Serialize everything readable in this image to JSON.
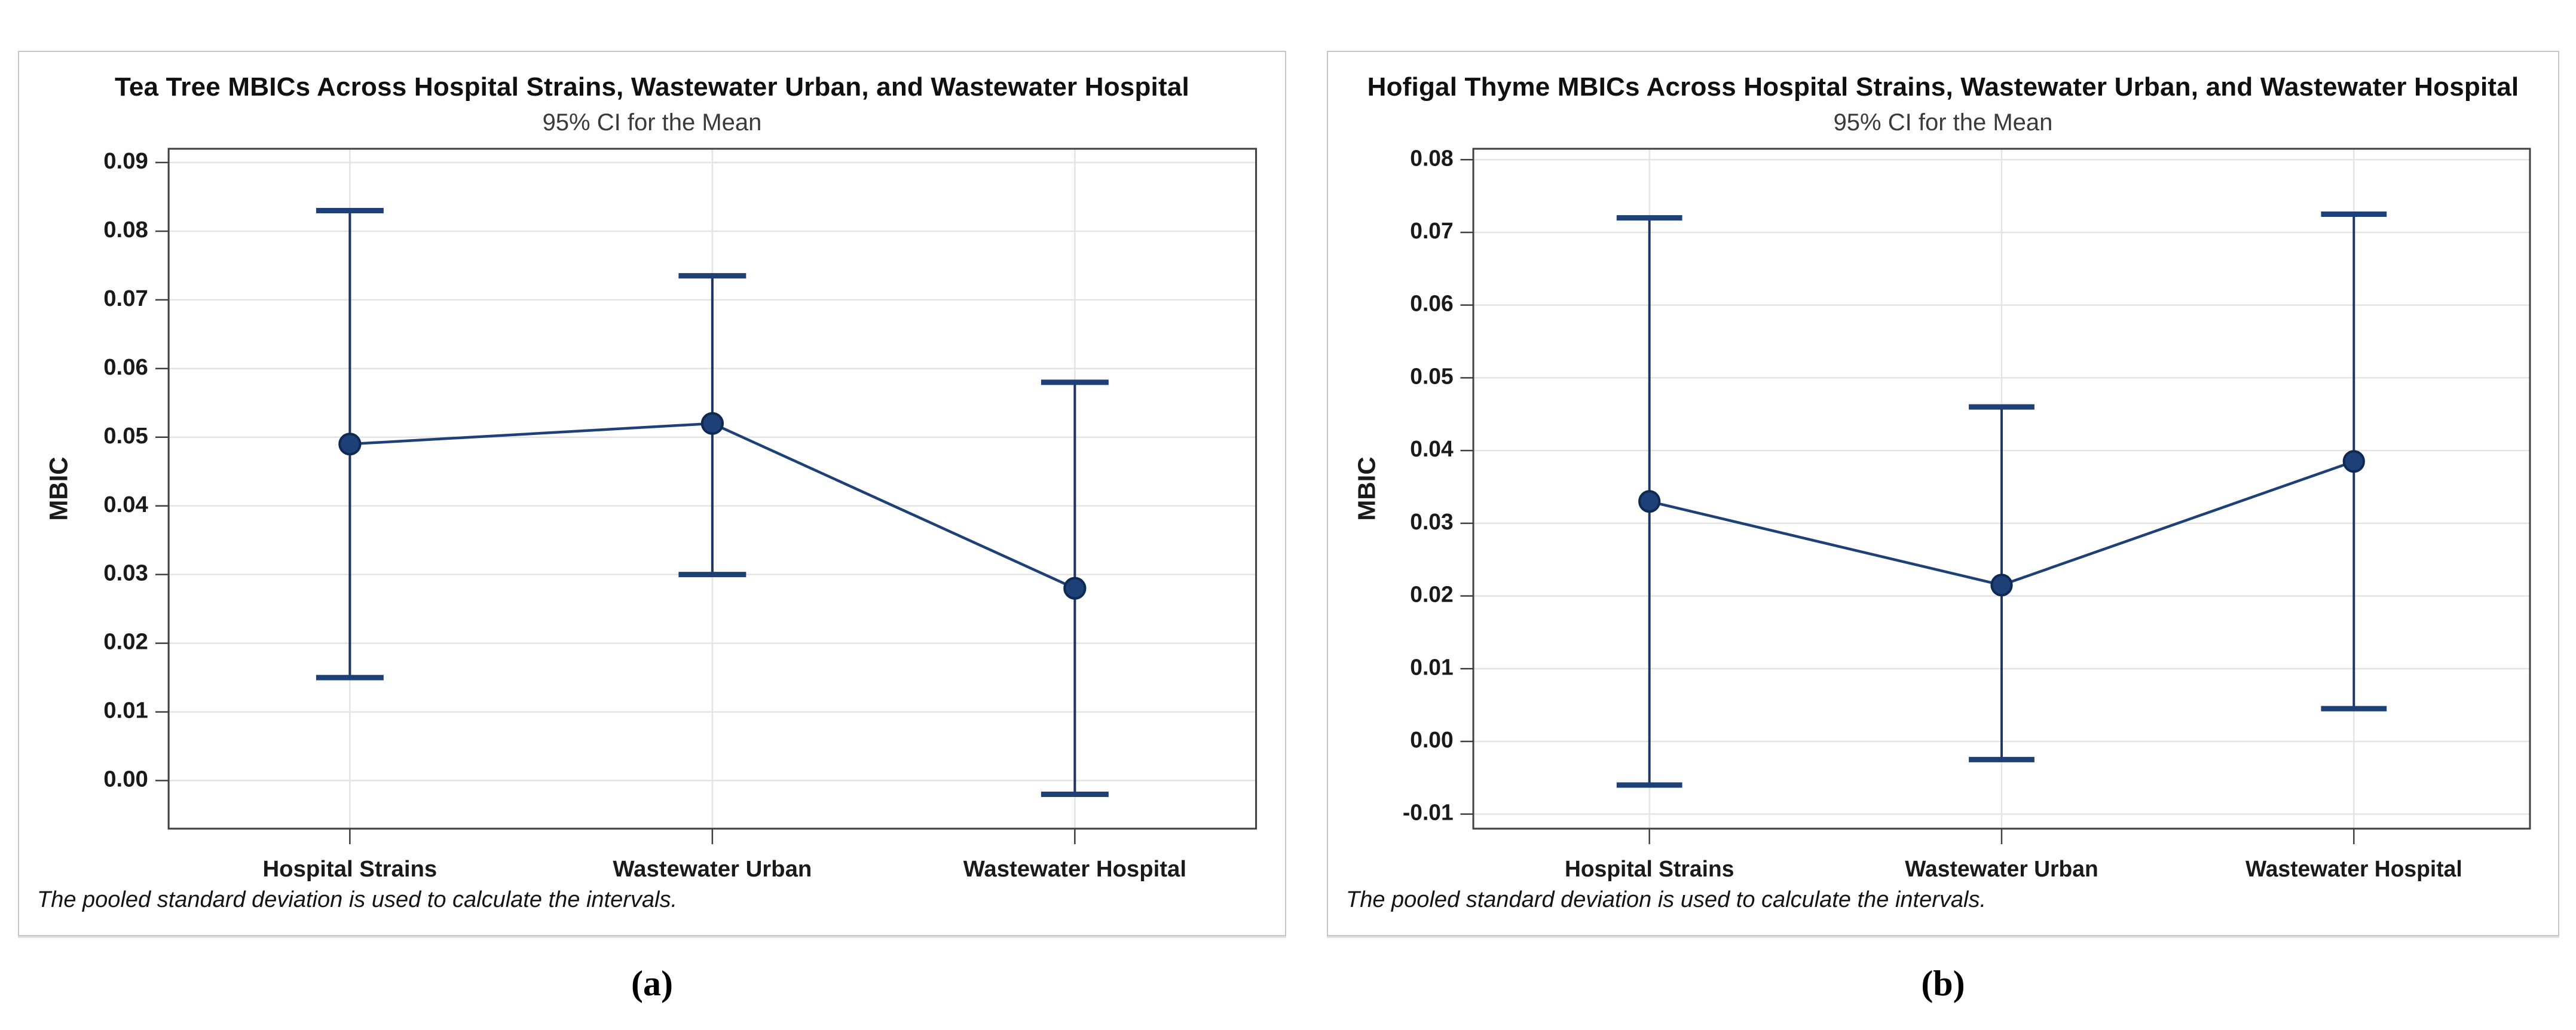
{
  "page": {
    "background": "#ffffff"
  },
  "colors": {
    "marker_fill": "#1d4076",
    "marker_edge": "#0f2a52",
    "mean_line": "#1d4076",
    "ci_cap": "#1d4076",
    "ci_line": "#1e3461",
    "gridline": "#e4e4e4",
    "plot_border": "#3f3f3f",
    "tick": "#3f3f3f",
    "text": "#1a1a1a"
  },
  "chart_data": [
    {
      "type": "line",
      "variant": "interval-plot-95ci-mean",
      "title": "Tea Tree MBICs Across Hospital Strains, Wastewater Urban, and Wastewater Hospital",
      "subtitle": "95% CI for the Mean",
      "ylabel": "MBIC",
      "xlabel": "",
      "categories": [
        "Hospital Strains",
        "Wastewater Urban",
        "Wastewater Hospital"
      ],
      "series": [
        {
          "name": "Mean",
          "values": [
            0.049,
            0.052,
            0.028
          ]
        },
        {
          "name": "95% CI lower",
          "values": [
            0.015,
            0.03,
            -0.002
          ]
        },
        {
          "name": "95% CI upper",
          "values": [
            0.083,
            0.0735,
            0.058
          ]
        }
      ],
      "yticks": [
        "0.09",
        "0.08",
        "0.07",
        "0.06",
        "0.05",
        "0.04",
        "0.03",
        "0.02",
        "0.01",
        "0.00"
      ],
      "ylim": [
        -0.007,
        0.092
      ],
      "grid": true,
      "legend": "none",
      "footnote": "The pooled standard deviation is used to calculate the intervals.",
      "caption": "(a)"
    },
    {
      "type": "line",
      "variant": "interval-plot-95ci-mean",
      "title": "Hofigal Thyme MBICs Across Hospital Strains, Wastewater Urban, and Wastewater Hospital",
      "subtitle": "95% CI for the Mean",
      "ylabel": "MBIC",
      "xlabel": "",
      "categories": [
        "Hospital Strains",
        "Wastewater Urban",
        "Wastewater Hospital"
      ],
      "series": [
        {
          "name": "Mean",
          "values": [
            0.033,
            0.0215,
            0.0385
          ]
        },
        {
          "name": "95% CI lower",
          "values": [
            -0.006,
            -0.0025,
            0.0045
          ]
        },
        {
          "name": "95% CI upper",
          "values": [
            0.072,
            0.046,
            0.0725
          ]
        }
      ],
      "yticks": [
        "0.08",
        "0.07",
        "0.06",
        "0.05",
        "0.04",
        "0.03",
        "0.02",
        "0.01",
        "0.00",
        "-0.01"
      ],
      "ylim": [
        -0.012,
        0.0815
      ],
      "grid": true,
      "legend": "none",
      "footnote": "The pooled standard deviation is used to calculate the intervals.",
      "caption": "(b)"
    }
  ]
}
